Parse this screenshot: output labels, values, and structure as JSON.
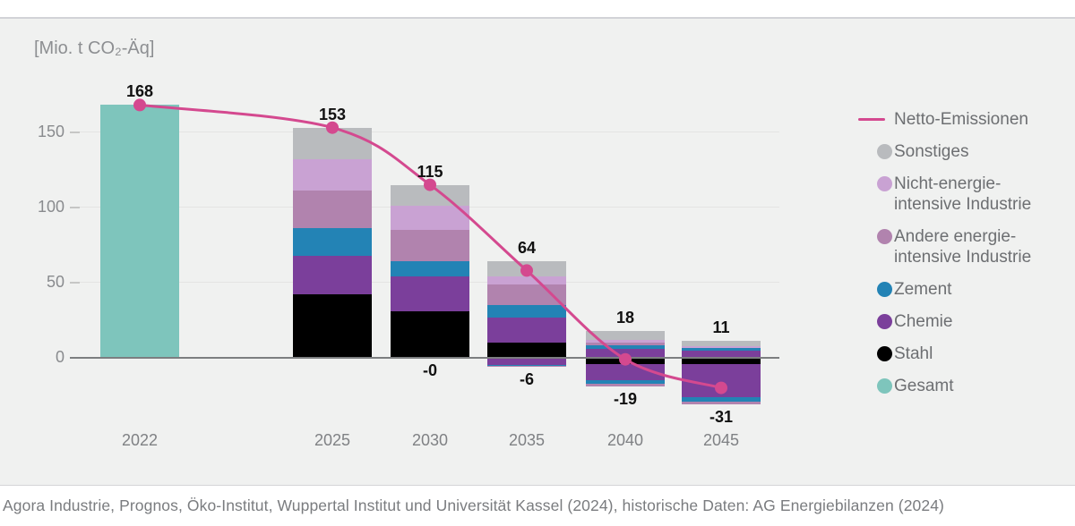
{
  "unit_label": "[Mio. t CO₂-Äq]",
  "source_line": "Agora Industrie, Prognos, Öko-Institut, Wuppertal Institut und Universität Kassel (2024), historische Daten: AG Energiebilanzen (2024)",
  "colors": {
    "netto_line": "#d4498f",
    "sonstiges": "#b9bbbe",
    "nicht": "#c9a2d3",
    "andere": "#b183ae",
    "zement": "#2383b5",
    "chemie": "#7b3f9b",
    "stahl": "#000000",
    "gesamt": "#7ec5bc",
    "panel_background": "#f0f1f0"
  },
  "legend": {
    "items": [
      {
        "id": "netto",
        "swatch": "line",
        "label_lines": [
          "Netto-Emissionen"
        ]
      },
      {
        "id": "sonstiges",
        "swatch": "dot",
        "label_lines": [
          "Sonstiges"
        ]
      },
      {
        "id": "nicht",
        "swatch": "dot",
        "label_lines": [
          "Nicht-energie-",
          "intensive Industrie"
        ]
      },
      {
        "id": "andere",
        "swatch": "dot",
        "label_lines": [
          "Andere energie-",
          "intensive Industrie"
        ]
      },
      {
        "id": "zement",
        "swatch": "dot",
        "label_lines": [
          "Zement"
        ]
      },
      {
        "id": "chemie",
        "swatch": "dot",
        "label_lines": [
          "Chemie"
        ]
      },
      {
        "id": "stahl",
        "swatch": "dot",
        "label_lines": [
          "Stahl"
        ]
      },
      {
        "id": "gesamt",
        "swatch": "dot",
        "label_lines": [
          "Gesamt"
        ]
      }
    ]
  },
  "chart_data": {
    "type": "bar",
    "subtype": "stacked-bars-with-net-emissions-line",
    "ylabel": "[Mio. t CO₂-Äq]",
    "y_ticks": [
      0,
      50,
      100,
      150
    ],
    "ylim": [
      -40,
      175
    ],
    "grid": "horizontal",
    "legend_position": "right",
    "categories": [
      "2022",
      "2025",
      "2030",
      "2035",
      "2040",
      "2045"
    ],
    "series_names": {
      "gesamt": "Gesamt",
      "stahl": "Stahl",
      "chemie": "Chemie",
      "zement": "Zement",
      "andere": "Andere energie-intensive Industrie",
      "nicht": "Nicht-energie-intensive Industrie",
      "sonstiges": "Sonstiges"
    },
    "bars": [
      {
        "category": "2022",
        "label_top": "168",
        "label_bottom": "",
        "pos": [
          {
            "s": "gesamt",
            "v": 168
          }
        ],
        "neg": []
      },
      {
        "category": "2025",
        "label_top": "153",
        "label_bottom": "",
        "pos": [
          {
            "s": "stahl",
            "v": 42
          },
          {
            "s": "chemie",
            "v": 26
          },
          {
            "s": "zement",
            "v": 18
          },
          {
            "s": "andere",
            "v": 25
          },
          {
            "s": "nicht",
            "v": 21
          },
          {
            "s": "sonstiges",
            "v": 21
          }
        ],
        "neg": []
      },
      {
        "category": "2030",
        "label_top": "115",
        "label_bottom": "-0",
        "pos": [
          {
            "s": "stahl",
            "v": 31
          },
          {
            "s": "chemie",
            "v": 23
          },
          {
            "s": "zement",
            "v": 10
          },
          {
            "s": "andere",
            "v": 21
          },
          {
            "s": "nicht",
            "v": 16
          },
          {
            "s": "sonstiges",
            "v": 14
          }
        ],
        "neg": []
      },
      {
        "category": "2035",
        "label_top": "64",
        "label_bottom": "-6",
        "pos": [
          {
            "s": "stahl",
            "v": 10
          },
          {
            "s": "chemie",
            "v": 17
          },
          {
            "s": "zement",
            "v": 8
          },
          {
            "s": "andere",
            "v": 14
          },
          {
            "s": "nicht",
            "v": 5
          },
          {
            "s": "sonstiges",
            "v": 10
          }
        ],
        "neg": [
          {
            "s": "chemie",
            "v": -4.5
          },
          {
            "s": "zement",
            "v": -1
          },
          {
            "s": "andere",
            "v": -0.5
          }
        ]
      },
      {
        "category": "2040",
        "label_top": "18",
        "label_bottom": "-19",
        "pos": [
          {
            "s": "chemie",
            "v": 6
          },
          {
            "s": "zement",
            "v": 2.5
          },
          {
            "s": "andere",
            "v": 1.5
          },
          {
            "s": "nicht",
            "v": 2
          },
          {
            "s": "sonstiges",
            "v": 6
          }
        ],
        "neg": [
          {
            "s": "stahl",
            "v": -4
          },
          {
            "s": "chemie",
            "v": -11
          },
          {
            "s": "zement",
            "v": -2.5
          },
          {
            "s": "andere",
            "v": -1.5
          }
        ]
      },
      {
        "category": "2045",
        "label_top": "11",
        "label_bottom": "-31",
        "pos": [
          {
            "s": "chemie",
            "v": 5
          },
          {
            "s": "zement",
            "v": 1.5
          },
          {
            "s": "nicht",
            "v": 1.5
          },
          {
            "s": "sonstiges",
            "v": 3
          }
        ],
        "neg": [
          {
            "s": "stahl",
            "v": -4
          },
          {
            "s": "chemie",
            "v": -22
          },
          {
            "s": "zement",
            "v": -3
          },
          {
            "s": "andere",
            "v": -2
          }
        ]
      }
    ],
    "net_line": {
      "name": "Netto-Emissionen",
      "values": [
        168,
        153,
        115,
        58,
        -1,
        -20
      ]
    }
  }
}
